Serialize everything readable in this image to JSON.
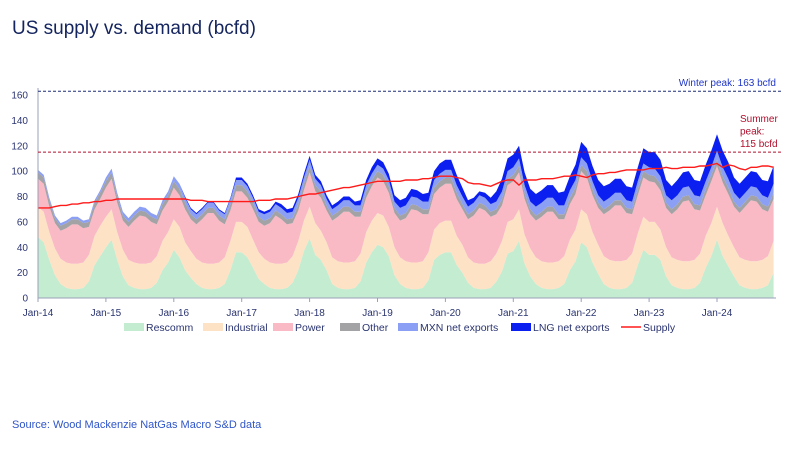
{
  "title": "US supply vs. demand (bcfd)",
  "source": "Source: Wood Mackenzie NatGas Macro S&D data",
  "chart_data": {
    "type": "area",
    "title": "US supply vs. demand (bcfd)",
    "xlabel": "",
    "ylabel": "",
    "ylim": [
      0,
      160
    ],
    "yticks": [
      "0",
      "20",
      "40",
      "60",
      "80",
      "100",
      "120",
      "140",
      "160"
    ],
    "xticks": [
      "Jan-14",
      "Jan-15",
      "Jan-16",
      "Jan-17",
      "Jan-18",
      "Jan-19",
      "Jan-20",
      "Jan-21",
      "Jan-22",
      "Jan-23",
      "Jan-24"
    ],
    "x_start": "Jan-14",
    "frequency": "monthly (approximate)",
    "legend_position": "bottom",
    "grid": false,
    "annotations": [
      {
        "label": "Winter peak: 163 bcfd",
        "value": 163,
        "color": "#1f2f7a"
      },
      {
        "label_lines": [
          "Summer",
          "peak:",
          "115 bcfd"
        ],
        "value": 115,
        "color": "#b0102e"
      }
    ],
    "series": [
      {
        "name": "Rescomm",
        "kind": "stack",
        "color": "#c4ecd0",
        "values": [
          48,
          44,
          30,
          18,
          11,
          8,
          7,
          7,
          8,
          13,
          26,
          33,
          40,
          46,
          30,
          17,
          10,
          8,
          7,
          7,
          8,
          12,
          22,
          28,
          38,
          32,
          22,
          16,
          11,
          8,
          7,
          7,
          8,
          11,
          22,
          36,
          36,
          32,
          24,
          15,
          11,
          8,
          7,
          7,
          8,
          12,
          22,
          37,
          47,
          34,
          30,
          22,
          11,
          8,
          7,
          7,
          8,
          13,
          28,
          36,
          42,
          40,
          33,
          18,
          11,
          8,
          7,
          7,
          8,
          14,
          30,
          34,
          36,
          36,
          26,
          20,
          12,
          8,
          7,
          7,
          8,
          13,
          21,
          35,
          37,
          45,
          27,
          17,
          11,
          8,
          7,
          7,
          8,
          11,
          22,
          29,
          44,
          40,
          28,
          19,
          11,
          8,
          7,
          7,
          8,
          12,
          26,
          38,
          34,
          34,
          30,
          17,
          10,
          8,
          7,
          7,
          8,
          12,
          24,
          33,
          46,
          33,
          25,
          17,
          10,
          8,
          7,
          7,
          8,
          10,
          20
        ]
      },
      {
        "name": "Industrial",
        "kind": "stack",
        "color": "#fde2c6",
        "values": [
          24,
          24,
          22,
          21,
          20,
          20,
          20,
          20,
          20,
          21,
          23,
          24,
          24,
          24,
          22,
          21,
          20,
          20,
          20,
          20,
          20,
          21,
          23,
          24,
          24,
          24,
          22,
          21,
          20,
          20,
          20,
          20,
          20,
          21,
          23,
          24,
          24,
          24,
          22,
          21,
          20,
          20,
          20,
          20,
          20,
          21,
          23,
          24,
          25,
          25,
          23,
          22,
          21,
          21,
          21,
          21,
          21,
          22,
          24,
          25,
          25,
          25,
          23,
          22,
          21,
          21,
          21,
          21,
          21,
          22,
          24,
          25,
          25,
          25,
          23,
          22,
          20,
          20,
          20,
          20,
          21,
          22,
          24,
          25,
          25,
          25,
          23,
          22,
          21,
          21,
          21,
          21,
          21,
          22,
          24,
          25,
          26,
          26,
          24,
          23,
          22,
          22,
          22,
          22,
          22,
          23,
          25,
          26,
          26,
          26,
          24,
          23,
          22,
          22,
          22,
          22,
          22,
          23,
          25,
          26,
          26,
          26,
          24,
          23,
          22,
          22,
          22,
          22,
          22,
          23,
          25
        ]
      },
      {
        "name": "Power",
        "kind": "stack",
        "color": "#f9b9c5",
        "values": [
          22,
          22,
          20,
          20,
          22,
          27,
          31,
          31,
          27,
          22,
          21,
          21,
          23,
          24,
          23,
          23,
          26,
          33,
          38,
          37,
          32,
          25,
          24,
          24,
          25,
          25,
          26,
          25,
          27,
          34,
          40,
          40,
          33,
          26,
          24,
          24,
          24,
          23,
          24,
          24,
          26,
          31,
          38,
          35,
          30,
          26,
          24,
          24,
          27,
          25,
          26,
          25,
          29,
          35,
          40,
          40,
          35,
          29,
          27,
          27,
          28,
          27,
          27,
          27,
          29,
          34,
          42,
          41,
          37,
          30,
          28,
          28,
          29,
          29,
          29,
          28,
          30,
          37,
          44,
          42,
          35,
          31,
          28,
          29,
          30,
          29,
          28,
          27,
          29,
          35,
          40,
          40,
          33,
          29,
          28,
          28,
          30,
          29,
          29,
          29,
          33,
          39,
          44,
          44,
          37,
          31,
          30,
          31,
          32,
          31,
          31,
          31,
          34,
          40,
          47,
          48,
          40,
          34,
          32,
          33,
          32,
          32,
          33,
          32,
          35,
          42,
          48,
          47,
          40,
          35,
          33
        ]
      },
      {
        "name": "Other",
        "kind": "stack",
        "color": "#a3a3a6",
        "values": [
          5,
          5,
          5,
          4,
          4,
          4,
          4,
          4,
          4,
          4,
          5,
          5,
          5,
          5,
          5,
          4,
          4,
          4,
          4,
          4,
          4,
          4,
          5,
          5,
          5,
          5,
          5,
          4,
          4,
          4,
          4,
          4,
          4,
          4,
          5,
          5,
          5,
          5,
          5,
          4,
          4,
          4,
          4,
          4,
          4,
          4,
          5,
          5,
          5,
          5,
          5,
          4,
          4,
          4,
          4,
          4,
          4,
          4,
          5,
          5,
          5,
          5,
          5,
          4,
          4,
          4,
          4,
          4,
          4,
          4,
          5,
          5,
          5,
          5,
          5,
          4,
          4,
          4,
          4,
          4,
          4,
          4,
          5,
          5,
          5,
          5,
          5,
          4,
          4,
          4,
          4,
          4,
          4,
          4,
          5,
          5,
          5,
          5,
          5,
          4,
          4,
          4,
          4,
          4,
          4,
          4,
          5,
          5,
          5,
          5,
          5,
          4,
          4,
          4,
          4,
          4,
          4,
          4,
          5,
          5,
          5,
          5,
          5,
          4,
          4,
          4,
          4,
          4,
          4,
          4,
          5
        ]
      },
      {
        "name": "MXN net exports",
        "kind": "stack",
        "color": "#8b9ff4",
        "values": [
          2,
          2,
          2,
          2,
          2,
          2,
          2,
          2,
          2,
          2,
          2,
          2,
          3,
          3,
          3,
          3,
          3,
          3,
          3,
          3,
          3,
          3,
          3,
          3,
          4,
          4,
          4,
          4,
          4,
          4,
          4,
          4,
          4,
          4,
          4,
          4,
          4,
          4,
          4,
          4,
          5,
          5,
          5,
          5,
          5,
          5,
          5,
          5,
          5,
          5,
          5,
          5,
          5,
          5,
          5,
          5,
          5,
          5,
          5,
          5,
          5,
          5,
          5,
          5,
          6,
          6,
          6,
          6,
          6,
          6,
          6,
          6,
          6,
          6,
          6,
          6,
          6,
          6,
          6,
          6,
          6,
          6,
          6,
          6,
          6,
          6,
          6,
          6,
          7,
          7,
          7,
          7,
          7,
          7,
          6,
          6,
          6,
          6,
          6,
          6,
          6,
          6,
          6,
          6,
          6,
          6,
          6,
          6,
          6,
          6,
          6,
          6,
          7,
          7,
          7,
          7,
          7,
          7,
          6,
          6,
          7,
          7,
          7,
          7,
          7,
          7,
          7,
          7,
          7,
          7,
          7
        ]
      },
      {
        "name": "LNG net exports",
        "kind": "stack",
        "color": "#0a1ff0",
        "values": [
          0,
          0,
          0,
          0,
          0,
          0,
          0,
          0,
          0,
          0,
          0,
          0,
          0,
          0,
          0,
          0,
          0,
          0,
          0,
          0,
          0,
          0,
          0,
          0,
          0,
          0,
          1,
          1,
          1,
          1,
          1,
          1,
          1,
          1,
          1,
          2,
          2,
          2,
          2,
          2,
          2,
          2,
          2,
          3,
          3,
          3,
          3,
          3,
          3,
          3,
          3,
          3,
          3,
          3,
          3,
          3,
          3,
          4,
          4,
          5,
          5,
          5,
          5,
          5,
          6,
          6,
          6,
          6,
          6,
          7,
          7,
          8,
          8,
          8,
          8,
          7,
          5,
          4,
          3,
          4,
          5,
          8,
          10,
          10,
          10,
          10,
          10,
          10,
          10,
          10,
          10,
          10,
          10,
          11,
          11,
          12,
          12,
          12,
          12,
          12,
          12,
          11,
          11,
          11,
          11,
          11,
          11,
          12,
          12,
          13,
          13,
          12,
          11,
          12,
          12,
          12,
          12,
          12,
          13,
          13,
          13,
          13,
          13,
          12,
          12,
          12,
          12,
          12,
          12,
          13,
          14
        ]
      },
      {
        "name": "Supply",
        "kind": "line",
        "color": "#ff1a1a",
        "values": [
          71,
          71,
          71,
          72,
          73,
          73,
          74,
          74,
          75,
          75,
          76,
          76,
          77,
          77,
          78,
          78,
          78,
          78,
          78,
          78,
          78,
          78,
          78,
          78,
          78,
          78,
          78,
          77,
          77,
          77,
          76,
          76,
          76,
          76,
          76,
          76,
          76,
          76,
          76,
          77,
          77,
          77,
          78,
          78,
          78,
          79,
          80,
          81,
          82,
          82,
          83,
          84,
          85,
          86,
          87,
          87,
          88,
          89,
          90,
          91,
          92,
          92,
          92,
          92,
          92,
          93,
          93,
          93,
          94,
          94,
          95,
          96,
          96,
          96,
          95,
          94,
          91,
          90,
          90,
          89,
          88,
          90,
          92,
          93,
          93,
          89,
          93,
          93,
          93,
          94,
          94,
          94,
          95,
          96,
          96,
          97,
          96,
          95,
          97,
          98,
          98,
          99,
          99,
          100,
          101,
          101,
          101,
          101,
          102,
          102,
          102,
          103,
          102,
          102,
          103,
          103,
          103,
          104,
          104,
          105,
          106,
          103,
          105,
          104,
          102,
          101,
          103,
          103,
          104,
          104,
          103
        ]
      }
    ]
  }
}
